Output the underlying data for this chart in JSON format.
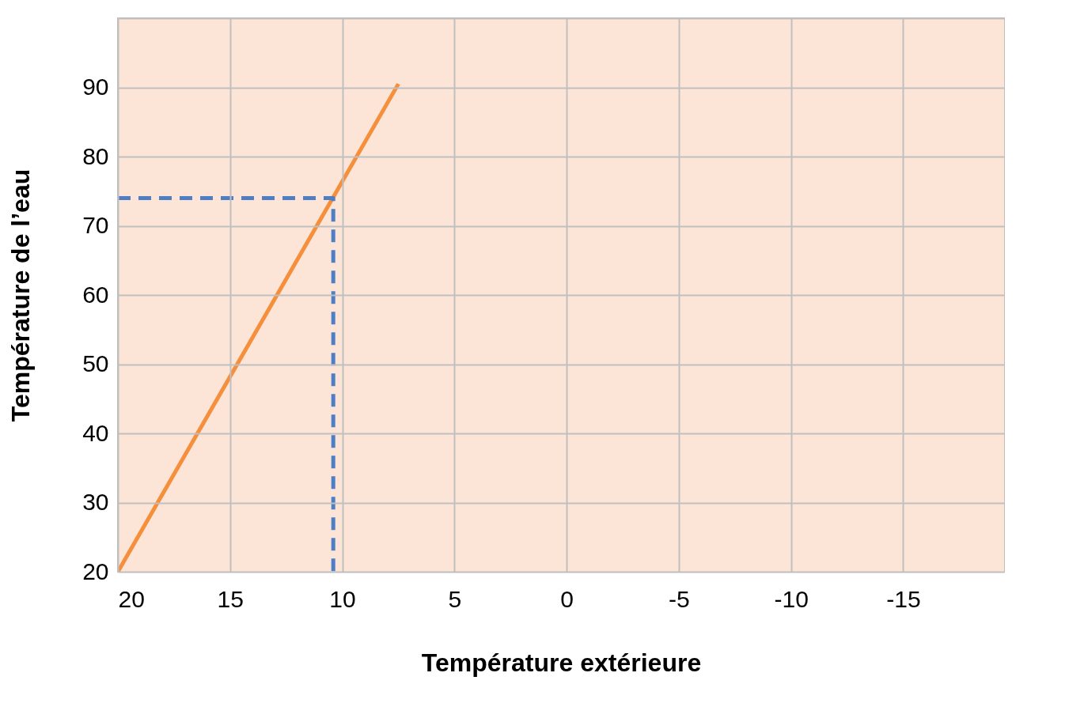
{
  "chart_data": {
    "type": "line",
    "xlabel": "Température extérieure",
    "ylabel": "Température de l’eau",
    "xlim": [
      20,
      -19.5
    ],
    "xticks": [
      20,
      15,
      10,
      5,
      0,
      -5,
      -10,
      -15
    ],
    "ylim": [
      20,
      100
    ],
    "yticks": [
      20,
      30,
      40,
      50,
      60,
      70,
      80,
      90,
      {
        "value": 100,
        "label": null
      }
    ],
    "grid": true,
    "marker": "none",
    "bands": [
      {
        "axis": "x",
        "from": 20,
        "to": -19.5,
        "color": "#fce4d6"
      }
    ],
    "series": [
      {
        "color": "#f58f3b",
        "x": [
          20,
          7.5
        ],
        "values": [
          20,
          90.5
        ]
      },
      {
        "color": "#4e7fc4",
        "x": [
          20,
          10.4,
          10.4
        ],
        "values": [
          74,
          74,
          20
        ],
        "line_style": "dashed"
      }
    ]
  }
}
